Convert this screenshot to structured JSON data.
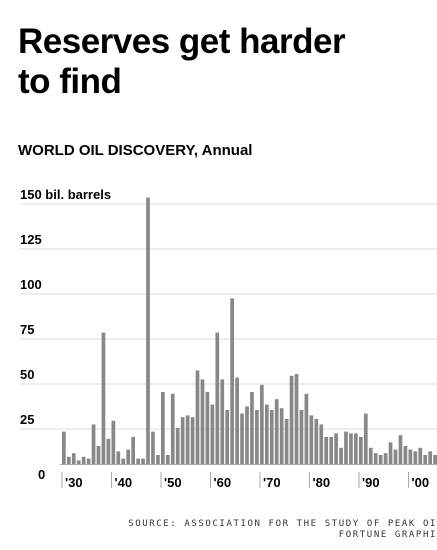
{
  "header": {
    "title_line1": "Reserves get harder",
    "title_line2": "to find",
    "subtitle": "WORLD OIL DISCOVERY, Annual"
  },
  "source": {
    "line1": "SOURCE: ASSOCIATION FOR THE STUDY OF PEAK OI",
    "line2": "FORTUNE GRAPHI"
  },
  "colors": {
    "bar": "#888888",
    "text": "#000000",
    "axis": "#aaaaaa"
  },
  "chart_data": {
    "type": "bar",
    "title": "WORLD OIL DISCOVERY, Annual",
    "ylabel": "bil. barrels",
    "ylim": [
      0,
      150
    ],
    "yticks": [
      {
        "value": 150,
        "label": "150 bil. barrels"
      },
      {
        "value": 125,
        "label": "125"
      },
      {
        "value": 100,
        "label": "100"
      },
      {
        "value": 75,
        "label": "75"
      },
      {
        "value": 50,
        "label": "50"
      },
      {
        "value": 25,
        "label": "25"
      },
      {
        "value": 0,
        "label": "0"
      }
    ],
    "xticks": [
      {
        "year": 1930,
        "label": "'30"
      },
      {
        "year": 1940,
        "label": "'40"
      },
      {
        "year": 1950,
        "label": "'50"
      },
      {
        "year": 1960,
        "label": "'60"
      },
      {
        "year": 1970,
        "label": "'70"
      },
      {
        "year": 1980,
        "label": "'80"
      },
      {
        "year": 1990,
        "label": "'90"
      },
      {
        "year": 2000,
        "label": "'00"
      }
    ],
    "x": [
      1930,
      1931,
      1932,
      1933,
      1934,
      1935,
      1936,
      1937,
      1938,
      1939,
      1940,
      1941,
      1942,
      1943,
      1944,
      1945,
      1946,
      1947,
      1948,
      1949,
      1950,
      1951,
      1952,
      1953,
      1954,
      1955,
      1956,
      1957,
      1958,
      1959,
      1960,
      1961,
      1962,
      1963,
      1964,
      1965,
      1966,
      1967,
      1968,
      1969,
      1970,
      1971,
      1972,
      1973,
      1974,
      1975,
      1976,
      1977,
      1978,
      1979,
      1980,
      1981,
      1982,
      1983,
      1984,
      1985,
      1986,
      1987,
      1988,
      1989,
      1990,
      1991,
      1992,
      1993,
      1994,
      1995,
      1996,
      1997,
      1998,
      1999,
      2000,
      2001,
      2002,
      2003,
      2004,
      2005
    ],
    "values": [
      18,
      4,
      6,
      2,
      4,
      3,
      22,
      10,
      73,
      14,
      24,
      7,
      3,
      8,
      15,
      3,
      3,
      148,
      18,
      5,
      40,
      5,
      39,
      20,
      26,
      27,
      26,
      52,
      47,
      40,
      33,
      73,
      47,
      30,
      92,
      48,
      28,
      32,
      40,
      30,
      44,
      33,
      30,
      36,
      31,
      25,
      49,
      50,
      30,
      39,
      27,
      25,
      22,
      15,
      15,
      17,
      9,
      18,
      17,
      17,
      15,
      28,
      9,
      6,
      5,
      6,
      12,
      8,
      16,
      10,
      8,
      7,
      9,
      5,
      7,
      5
    ]
  }
}
